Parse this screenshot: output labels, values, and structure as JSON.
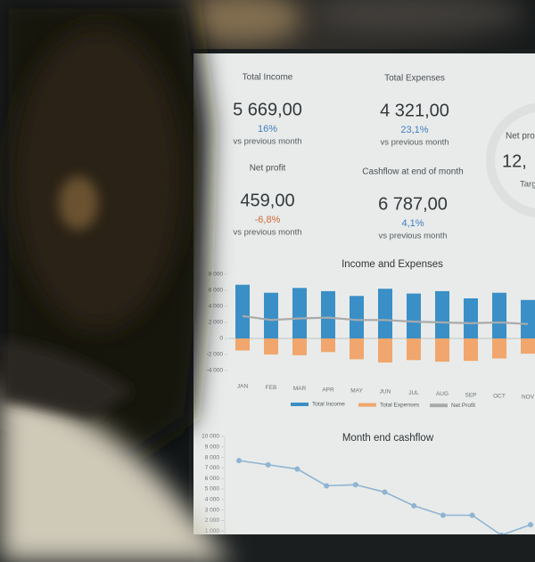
{
  "kpis": [
    {
      "title": "Total Income",
      "value": "5 669,00",
      "change": "16%",
      "change_color": "#3f7fc0",
      "note": "vs previous month"
    },
    {
      "title": "Total Expenses",
      "value": "4 321,00",
      "change": "23,1%",
      "change_color": "#3f7fc0",
      "note": "vs previous month"
    },
    {
      "title": "Net profit",
      "value": "459,00",
      "change": "-6,8%",
      "change_color": "#d06a3a",
      "note": "vs previous month"
    },
    {
      "title": "Cashflow at end of month",
      "value": "6 787,00",
      "change": "4,1%",
      "change_color": "#3f7fc0",
      "note": "vs previous month"
    }
  ],
  "partial_kpi": {
    "title": "Net pro",
    "value": "12,",
    "note": "Targ"
  },
  "chart_data": [
    {
      "type": "bar",
      "title": "Income and Expenses",
      "categories": [
        "JAN",
        "FEB",
        "MAR",
        "APR",
        "MAY",
        "JUN",
        "JUL",
        "AUG",
        "SEP",
        "OCT",
        "NOV"
      ],
      "series": [
        {
          "name": "Total Income",
          "color": "#3a8fc6",
          "values": [
            6700,
            5700,
            6300,
            5900,
            5300,
            6200,
            5600,
            5900,
            5000,
            5700,
            4800
          ]
        },
        {
          "name": "Total Expenses",
          "color": "#f0a66c",
          "values": [
            -1500,
            -2000,
            -2100,
            -1700,
            -2600,
            -3000,
            -2700,
            -2900,
            -2800,
            -2500,
            -1900
          ]
        },
        {
          "name": "Net Profit",
          "color": "#a8aaab",
          "type": "line",
          "values": [
            2800,
            2300,
            2500,
            2600,
            2300,
            2300,
            2100,
            2000,
            1900,
            2000,
            1800
          ]
        }
      ],
      "ylim": [
        -4000,
        8000
      ],
      "yticks": [
        {
          "value": 8000,
          "label": "8 000"
        },
        {
          "value": 6000,
          "label": "6 000"
        },
        {
          "value": 4000,
          "label": "4 000"
        },
        {
          "value": 2000,
          "label": "2 000"
        },
        0,
        {
          "value": -2000,
          "label": "-2 000"
        },
        {
          "value": -4000,
          "label": "-4 000"
        }
      ]
    },
    {
      "type": "line",
      "title": "Month end cashflow",
      "color": "#8fb4d3",
      "values": [
        7700,
        7300,
        6900,
        5300,
        5400,
        4700,
        3400,
        2500,
        2500,
        600,
        1600
      ],
      "ylim": [
        0,
        10000
      ],
      "yticks": [
        {
          "value": 10000,
          "label": "10 000"
        },
        {
          "value": 9000,
          "label": "9 000"
        },
        {
          "value": 8000,
          "label": "8 000"
        },
        {
          "value": 7000,
          "label": "7 000"
        },
        {
          "value": 6000,
          "label": "6 000"
        },
        {
          "value": 5000,
          "label": "5 000"
        },
        {
          "value": 4000,
          "label": "4 000"
        },
        {
          "value": 3000,
          "label": "3 000"
        },
        {
          "value": 2000,
          "label": "2 000"
        },
        {
          "value": 1000,
          "label": "1 000"
        }
      ]
    }
  ]
}
